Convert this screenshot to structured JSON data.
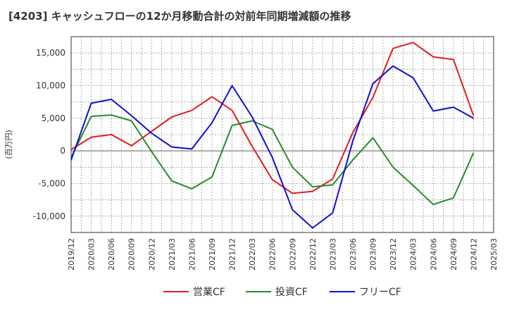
{
  "title": "[4203]  キャッシュフローの12か月移動合計の対前年同期増減額の推移",
  "chart_data": {
    "type": "line",
    "title": "[4203]  キャッシュフローの12か月移動合計の対前年同期増減額の推移",
    "xlabel": "",
    "ylabel": "(百万円)",
    "ylim": [
      -12500,
      17500
    ],
    "yticks": [
      -10000,
      -5000,
      0,
      5000,
      10000,
      15000
    ],
    "ytick_labels": [
      "-10,000",
      "-5,000",
      "0",
      "5,000",
      "10,000",
      "15,000"
    ],
    "grid": true,
    "legend_position": "bottom",
    "categories": [
      "2019/12",
      "2020/03",
      "2020/06",
      "2020/09",
      "2020/12",
      "2021/03",
      "2021/06",
      "2021/09",
      "2021/12",
      "2022/03",
      "2022/06",
      "2022/09",
      "2022/12",
      "2023/03",
      "2023/06",
      "2023/09",
      "2023/12",
      "2024/03",
      "2024/06",
      "2024/09",
      "2024/12",
      "2025/03"
    ],
    "series": [
      {
        "name": "営業CF",
        "color": "#dd1f1f",
        "values": [
          200,
          2100,
          2500,
          800,
          3000,
          5200,
          6200,
          8300,
          6200,
          700,
          -4400,
          -6500,
          -6200,
          -4300,
          2800,
          8200,
          15700,
          16600,
          14400,
          14000,
          5400,
          null
        ]
      },
      {
        "name": "投資CF",
        "color": "#2a8a2a",
        "values": [
          -1000,
          5300,
          5500,
          4600,
          -100,
          -4600,
          -5800,
          -4000,
          3900,
          4600,
          3300,
          -2500,
          -5500,
          -5200,
          -1400,
          2000,
          -2500,
          -5300,
          -8200,
          -7200,
          -300,
          null
        ]
      },
      {
        "name": "フリーCF",
        "color": "#1010cc",
        "values": [
          -1400,
          7300,
          7900,
          5400,
          2700,
          600,
          300,
          4300,
          10000,
          5200,
          -1000,
          -9000,
          -11800,
          -9500,
          1500,
          10300,
          13000,
          11200,
          6100,
          6700,
          5000,
          null
        ]
      }
    ]
  }
}
